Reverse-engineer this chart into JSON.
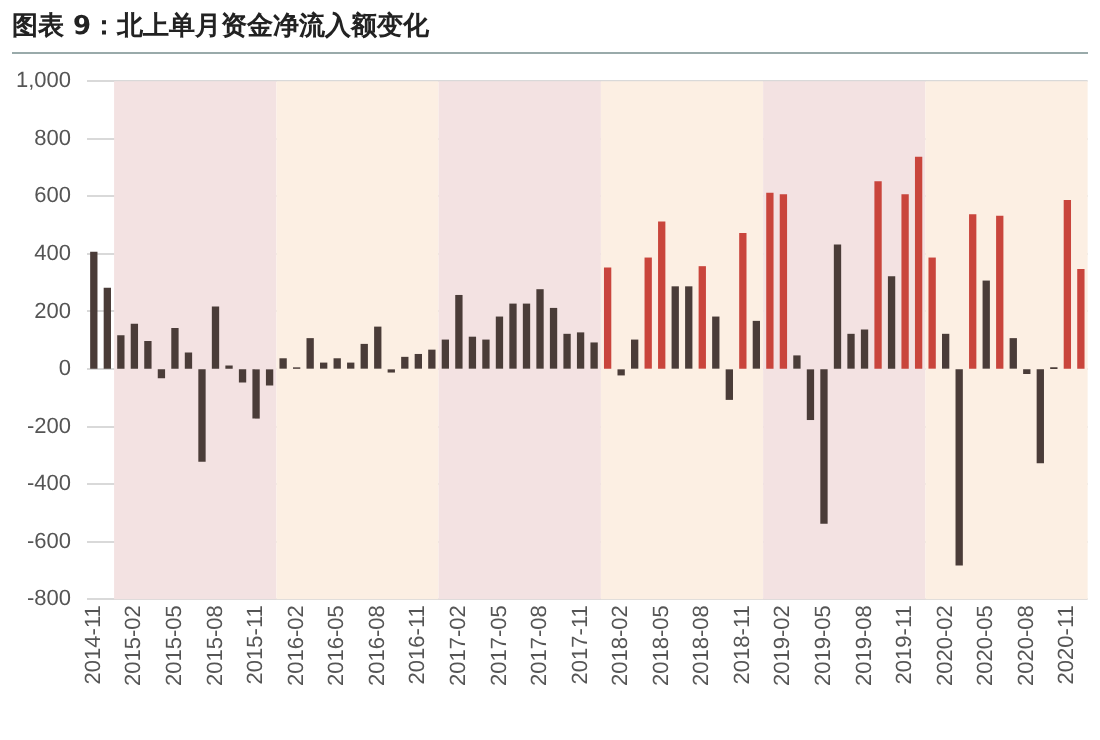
{
  "chart_data": {
    "type": "bar",
    "title": "图表 9：北上单月资金净流入额变化",
    "x": [
      "2014-11",
      "2014-12",
      "2015-01",
      "2015-02",
      "2015-03",
      "2015-04",
      "2015-05",
      "2015-06",
      "2015-07",
      "2015-08",
      "2015-09",
      "2015-10",
      "2015-11",
      "2015-12",
      "2016-01",
      "2016-02",
      "2016-03",
      "2016-04",
      "2016-05",
      "2016-06",
      "2016-07",
      "2016-08",
      "2016-09",
      "2016-10",
      "2016-11",
      "2016-12",
      "2017-01",
      "2017-02",
      "2017-03",
      "2017-04",
      "2017-05",
      "2017-06",
      "2017-07",
      "2017-08",
      "2017-09",
      "2017-10",
      "2017-11",
      "2017-12",
      "2018-01",
      "2018-02",
      "2018-03",
      "2018-04",
      "2018-05",
      "2018-06",
      "2018-07",
      "2018-08",
      "2018-09",
      "2018-10",
      "2018-11",
      "2018-12",
      "2019-01",
      "2019-02",
      "2019-03",
      "2019-04",
      "2019-05",
      "2019-06",
      "2019-07",
      "2019-08",
      "2019-09",
      "2019-10",
      "2019-11",
      "2019-12",
      "2020-01",
      "2020-02",
      "2020-03",
      "2020-04",
      "2020-05",
      "2020-06",
      "2020-07",
      "2020-08",
      "2020-09",
      "2020-10",
      "2020-11",
      "2020-12"
    ],
    "values": [
      405,
      280,
      115,
      155,
      95,
      -30,
      140,
      55,
      -320,
      215,
      10,
      -45,
      -170,
      -55,
      35,
      3,
      105,
      20,
      35,
      20,
      85,
      145,
      -10,
      40,
      50,
      65,
      100,
      255,
      110,
      100,
      180,
      225,
      225,
      275,
      210,
      120,
      125,
      90,
      350,
      -20,
      100,
      385,
      510,
      285,
      285,
      355,
      180,
      -105,
      470,
      165,
      610,
      605,
      45,
      -175,
      -535,
      430,
      120,
      135,
      650,
      320,
      605,
      735,
      385,
      120,
      -680,
      535,
      305,
      530,
      105,
      -15,
      -325,
      2,
      585,
      345
    ],
    "colors": [
      "#4a3c38",
      "#4a3c38",
      "#4a3c38",
      "#4a3c38",
      "#4a3c38",
      "#4a3c38",
      "#4a3c38",
      "#4a3c38",
      "#4a3c38",
      "#4a3c38",
      "#4a3c38",
      "#4a3c38",
      "#4a3c38",
      "#4a3c38",
      "#4a3c38",
      "#4a3c38",
      "#4a3c38",
      "#4a3c38",
      "#4a3c38",
      "#4a3c38",
      "#4a3c38",
      "#4a3c38",
      "#4a3c38",
      "#4a3c38",
      "#4a3c38",
      "#4a3c38",
      "#4a3c38",
      "#4a3c38",
      "#4a3c38",
      "#4a3c38",
      "#4a3c38",
      "#4a3c38",
      "#4a3c38",
      "#4a3c38",
      "#4a3c38",
      "#4a3c38",
      "#4a3c38",
      "#4a3c38",
      "#c9453c",
      "#4a3c38",
      "#4a3c38",
      "#c9453c",
      "#c9453c",
      "#4a3c38",
      "#4a3c38",
      "#c9453c",
      "#4a3c38",
      "#4a3c38",
      "#c9453c",
      "#4a3c38",
      "#c9453c",
      "#c9453c",
      "#4a3c38",
      "#4a3c38",
      "#4a3c38",
      "#4a3c38",
      "#4a3c38",
      "#4a3c38",
      "#c9453c",
      "#4a3c38",
      "#c9453c",
      "#c9453c",
      "#c9453c",
      "#4a3c38",
      "#4a3c38",
      "#c9453c",
      "#4a3c38",
      "#c9453c",
      "#4a3c38",
      "#4a3c38",
      "#4a3c38",
      "#4a3c38",
      "#c9453c",
      "#c9453c"
    ],
    "xlim": [
      "2014-10-16",
      "2020-12-16"
    ],
    "xticks": [
      "2014-11",
      "2015-02",
      "2015-05",
      "2015-08",
      "2015-11",
      "2016-02",
      "2016-05",
      "2016-08",
      "2016-11",
      "2017-02",
      "2017-05",
      "2017-08",
      "2017-11",
      "2018-02",
      "2018-05",
      "2018-08",
      "2018-11",
      "2019-02",
      "2019-05",
      "2019-08",
      "2019-11",
      "2020-02",
      "2020-05",
      "2020-08",
      "2020-11"
    ],
    "ylim": [
      -800,
      1000
    ],
    "yticks": [
      -800,
      -600,
      -400,
      -200,
      0,
      200,
      400,
      600,
      800,
      {
        "value": 1000,
        "label": "1,000"
      }
    ],
    "grid": "y",
    "legend": false,
    "bands": [
      {
        "axis": "x",
        "from": "2014-12-16",
        "to": "2015-12-16",
        "color": "#f3e2e2"
      },
      {
        "axis": "x",
        "from": "2015-12-16",
        "to": "2016-12-16",
        "color": "#fcefe3"
      },
      {
        "axis": "x",
        "from": "2016-12-16",
        "to": "2017-12-16",
        "color": "#f3e2e2"
      },
      {
        "axis": "x",
        "from": "2017-12-16",
        "to": "2018-12-16",
        "color": "#fcefe3"
      },
      {
        "axis": "x",
        "from": "2018-12-16",
        "to": "2019-12-16",
        "color": "#f3e2e2"
      },
      {
        "axis": "x",
        "from": "2019-12-16",
        "to": "2020-12-16",
        "color": "#fcefe3"
      }
    ]
  }
}
